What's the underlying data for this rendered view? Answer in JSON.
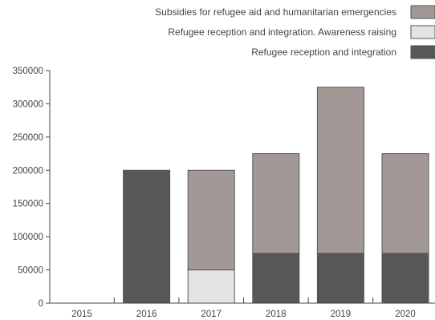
{
  "chart_data": {
    "type": "bar",
    "stacked": true,
    "categories": [
      "2015",
      "2016",
      "2017",
      "2018",
      "2019",
      "2020"
    ],
    "ylim": [
      0,
      350000
    ],
    "yticks": [
      0,
      50000,
      100000,
      150000,
      200000,
      250000,
      300000,
      350000
    ],
    "grid": false,
    "legend_position": "top-right",
    "series": [
      {
        "name": "Refugee reception and integration",
        "color": "#575757",
        "values": [
          0,
          200000,
          0,
          75000,
          75000,
          75000
        ]
      },
      {
        "name": "Refugee reception and integration. Awareness raising",
        "color": "#e4e4e4",
        "values": [
          0,
          0,
          50000,
          0,
          0,
          0
        ]
      },
      {
        "name": "Subsidies for refugee aid and humanitarian emergencies",
        "color": "#a29996",
        "values": [
          0,
          0,
          150000,
          150000,
          250000,
          150000
        ]
      }
    ]
  }
}
